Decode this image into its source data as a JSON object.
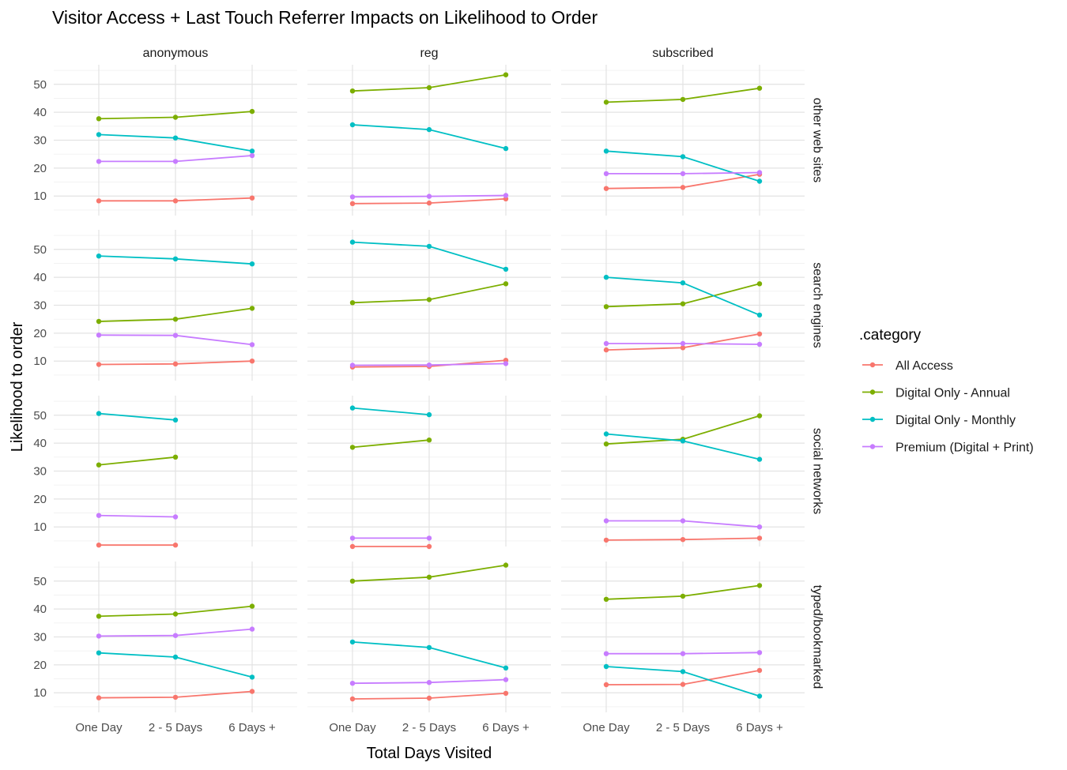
{
  "chart_data": {
    "type": "line",
    "title": "Visitor Access + Last Touch Referrer Impacts on Likelihood to Order",
    "xlabel": "Total Days Visited",
    "ylabel": "Likelihood to order",
    "categories": [
      "One Day",
      "2 - 5 Days",
      "6 Days +"
    ],
    "ylim": [
      3,
      57
    ],
    "yticks": [
      10,
      20,
      30,
      40,
      50
    ],
    "grid": true,
    "legend": {
      "title": ".category",
      "placement": "right",
      "entries": [
        {
          "name": "All Access",
          "color": "#F8766D"
        },
        {
          "name": "Digital Only - Annual",
          "color": "#7CAE00"
        },
        {
          "name": "Digital Only - Monthly",
          "color": "#00BFC4"
        },
        {
          "name": "Premium (Digital + Print)",
          "color": "#C77CFF"
        }
      ]
    },
    "columns": [
      "anonymous",
      "reg",
      "subscribed"
    ],
    "rows": [
      "other web sites",
      "search engines",
      "social networks",
      "typed/bookmarked"
    ],
    "panels": [
      {
        "row": "other web sites",
        "column": "anonymous",
        "series": [
          {
            "name": "All Access",
            "values": [
              8.3,
              8.3,
              9.3
            ]
          },
          {
            "name": "Digital Only - Annual",
            "values": [
              37.7,
              38.2,
              40.3
            ]
          },
          {
            "name": "Digital Only - Monthly",
            "values": [
              32.0,
              30.8,
              26.1
            ]
          },
          {
            "name": "Premium (Digital + Print)",
            "values": [
              22.4,
              22.4,
              24.5
            ]
          }
        ]
      },
      {
        "row": "other web sites",
        "column": "reg",
        "series": [
          {
            "name": "All Access",
            "values": [
              7.3,
              7.5,
              9.0
            ]
          },
          {
            "name": "Digital Only - Annual",
            "values": [
              47.6,
              48.8,
              53.4
            ]
          },
          {
            "name": "Digital Only - Monthly",
            "values": [
              35.5,
              33.8,
              27.0
            ]
          },
          {
            "name": "Premium (Digital + Print)",
            "values": [
              9.7,
              9.9,
              10.2
            ]
          }
        ]
      },
      {
        "row": "other web sites",
        "column": "subscribed",
        "series": [
          {
            "name": "All Access",
            "values": [
              12.7,
              13.1,
              17.8
            ]
          },
          {
            "name": "Digital Only - Annual",
            "values": [
              43.6,
              44.6,
              48.6
            ]
          },
          {
            "name": "Digital Only - Monthly",
            "values": [
              26.1,
              24.1,
              15.3
            ]
          },
          {
            "name": "Premium (Digital + Print)",
            "values": [
              18.0,
              18.0,
              18.4
            ]
          }
        ]
      },
      {
        "row": "search engines",
        "column": "anonymous",
        "series": [
          {
            "name": "All Access",
            "values": [
              8.8,
              9.0,
              10.0
            ]
          },
          {
            "name": "Digital Only - Annual",
            "values": [
              24.2,
              25.0,
              28.9
            ]
          },
          {
            "name": "Digital Only - Monthly",
            "values": [
              47.6,
              46.6,
              44.8
            ]
          },
          {
            "name": "Premium (Digital + Print)",
            "values": [
              19.3,
              19.2,
              15.9
            ]
          }
        ]
      },
      {
        "row": "search engines",
        "column": "reg",
        "series": [
          {
            "name": "All Access",
            "values": [
              7.9,
              8.1,
              10.3
            ]
          },
          {
            "name": "Digital Only - Annual",
            "values": [
              30.9,
              32.0,
              37.7
            ]
          },
          {
            "name": "Digital Only - Monthly",
            "values": [
              52.6,
              51.1,
              42.9
            ]
          },
          {
            "name": "Premium (Digital + Print)",
            "values": [
              8.5,
              8.6,
              9.1
            ]
          }
        ]
      },
      {
        "row": "search engines",
        "column": "subscribed",
        "series": [
          {
            "name": "All Access",
            "values": [
              14.0,
              14.8,
              19.7
            ]
          },
          {
            "name": "Digital Only - Annual",
            "values": [
              29.5,
              30.5,
              37.7
            ]
          },
          {
            "name": "Digital Only - Monthly",
            "values": [
              40.0,
              38.0,
              26.5
            ]
          },
          {
            "name": "Premium (Digital + Print)",
            "values": [
              16.3,
              16.3,
              16.0
            ]
          }
        ]
      },
      {
        "row": "social networks",
        "column": "anonymous",
        "series": [
          {
            "name": "All Access",
            "values": [
              3.5,
              3.5,
              null
            ]
          },
          {
            "name": "Digital Only - Annual",
            "values": [
              32.2,
              35.0,
              null
            ]
          },
          {
            "name": "Digital Only - Monthly",
            "values": [
              50.6,
              48.3,
              null
            ]
          },
          {
            "name": "Premium (Digital + Print)",
            "values": [
              14.1,
              13.6,
              null
            ]
          }
        ]
      },
      {
        "row": "social networks",
        "column": "reg",
        "series": [
          {
            "name": "All Access",
            "values": [
              3.0,
              3.0,
              null
            ]
          },
          {
            "name": "Digital Only - Annual",
            "values": [
              38.5,
              41.1,
              null
            ]
          },
          {
            "name": "Digital Only - Monthly",
            "values": [
              52.6,
              50.2,
              null
            ]
          },
          {
            "name": "Premium (Digital + Print)",
            "values": [
              6.0,
              6.0,
              null
            ]
          }
        ]
      },
      {
        "row": "social networks",
        "column": "subscribed",
        "series": [
          {
            "name": "All Access",
            "values": [
              5.3,
              5.5,
              6.0
            ]
          },
          {
            "name": "Digital Only - Annual",
            "values": [
              39.7,
              41.4,
              49.8
            ]
          },
          {
            "name": "Digital Only - Monthly",
            "values": [
              43.3,
              40.8,
              34.2
            ]
          },
          {
            "name": "Premium (Digital + Print)",
            "values": [
              12.2,
              12.2,
              10.0
            ]
          }
        ]
      },
      {
        "row": "typed/bookmarked",
        "column": "anonymous",
        "series": [
          {
            "name": "All Access",
            "values": [
              8.2,
              8.4,
              10.5
            ]
          },
          {
            "name": "Digital Only - Annual",
            "values": [
              37.4,
              38.2,
              41.0
            ]
          },
          {
            "name": "Digital Only - Monthly",
            "values": [
              24.3,
              22.8,
              15.6
            ]
          },
          {
            "name": "Premium (Digital + Print)",
            "values": [
              30.3,
              30.5,
              32.8
            ]
          }
        ]
      },
      {
        "row": "typed/bookmarked",
        "column": "reg",
        "series": [
          {
            "name": "All Access",
            "values": [
              7.8,
              8.1,
              9.8
            ]
          },
          {
            "name": "Digital Only - Annual",
            "values": [
              50.0,
              51.4,
              55.7
            ]
          },
          {
            "name": "Digital Only - Monthly",
            "values": [
              28.2,
              26.2,
              18.9
            ]
          },
          {
            "name": "Premium (Digital + Print)",
            "values": [
              13.4,
              13.7,
              14.7
            ]
          }
        ]
      },
      {
        "row": "typed/bookmarked",
        "column": "subscribed",
        "series": [
          {
            "name": "All Access",
            "values": [
              12.9,
              13.0,
              18.0
            ]
          },
          {
            "name": "Digital Only - Annual",
            "values": [
              43.5,
              44.6,
              48.4
            ]
          },
          {
            "name": "Digital Only - Monthly",
            "values": [
              19.4,
              17.6,
              8.8
            ]
          },
          {
            "name": "Premium (Digital + Print)",
            "values": [
              24.0,
              24.0,
              24.4
            ]
          }
        ]
      }
    ]
  }
}
